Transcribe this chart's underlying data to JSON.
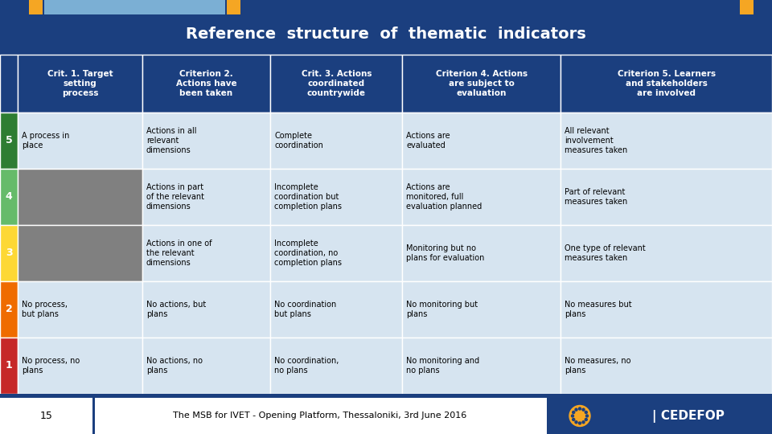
{
  "title": "Reference  structure  of  thematic  indicators",
  "title_bg": "#1b3f7f",
  "title_fg": "#ffffff",
  "header_bg": "#1b3f7f",
  "header_fg": "#ffffff",
  "col_headers": [
    "Crit. 1. Target\nsetting\nprocess",
    "Criterion 2.\nActions have\nbeen taken",
    "Crit. 3. Actions\ncoordinated\ncountrywide",
    "Criterion 4. Actions\nare subject to\nevaluation",
    "Criterion 5. Learners\nand stakeholders\nare involved"
  ],
  "score_colors": [
    "#2e7d32",
    "#66bb6a",
    "#fdd835",
    "#ef6c00",
    "#c62828"
  ],
  "row_bg_light": "#d6e4f0",
  "row_bg_gray": "#808080",
  "rows": [
    {
      "score": "5",
      "cells": [
        "A process in\nplace",
        "Actions in all\nrelevant\ndimensions",
        "Complete\ncoordination",
        "Actions are\nevaluated",
        "All relevant\ninvolvement\nmeasures taken"
      ],
      "gray_col1": false
    },
    {
      "score": "4",
      "cells": [
        "",
        "Actions in part\nof the relevant\ndimensions",
        "Incomplete\ncoordination but\ncompletion plans",
        "Actions are\nmonitored, full\nevaluation planned",
        "Part of relevant\nmeasures taken"
      ],
      "gray_col1": true
    },
    {
      "score": "3",
      "cells": [
        "",
        "Actions in one of\nthe relevant\ndimensions",
        "Incomplete\ncoordination, no\ncompletion plans",
        "Monitoring but no\nplans for evaluation",
        "One type of relevant\nmeasures taken"
      ],
      "gray_col1": true
    },
    {
      "score": "2",
      "cells": [
        "No process,\nbut plans",
        "No actions, but\nplans",
        "No coordination\nbut plans",
        "No monitoring but\nplans",
        "No measures but\nplans"
      ],
      "gray_col1": false
    },
    {
      "score": "1",
      "cells": [
        "No process, no\nplans",
        "No actions, no\nplans",
        "No coordination,\nno plans",
        "No monitoring and\nno plans",
        "No measures, no\nplans"
      ],
      "gray_col1": false
    }
  ],
  "footer_text": "The MSB for IVET - Opening Platform, Thessaloniki, 3rd June 2016",
  "footer_page": "15"
}
